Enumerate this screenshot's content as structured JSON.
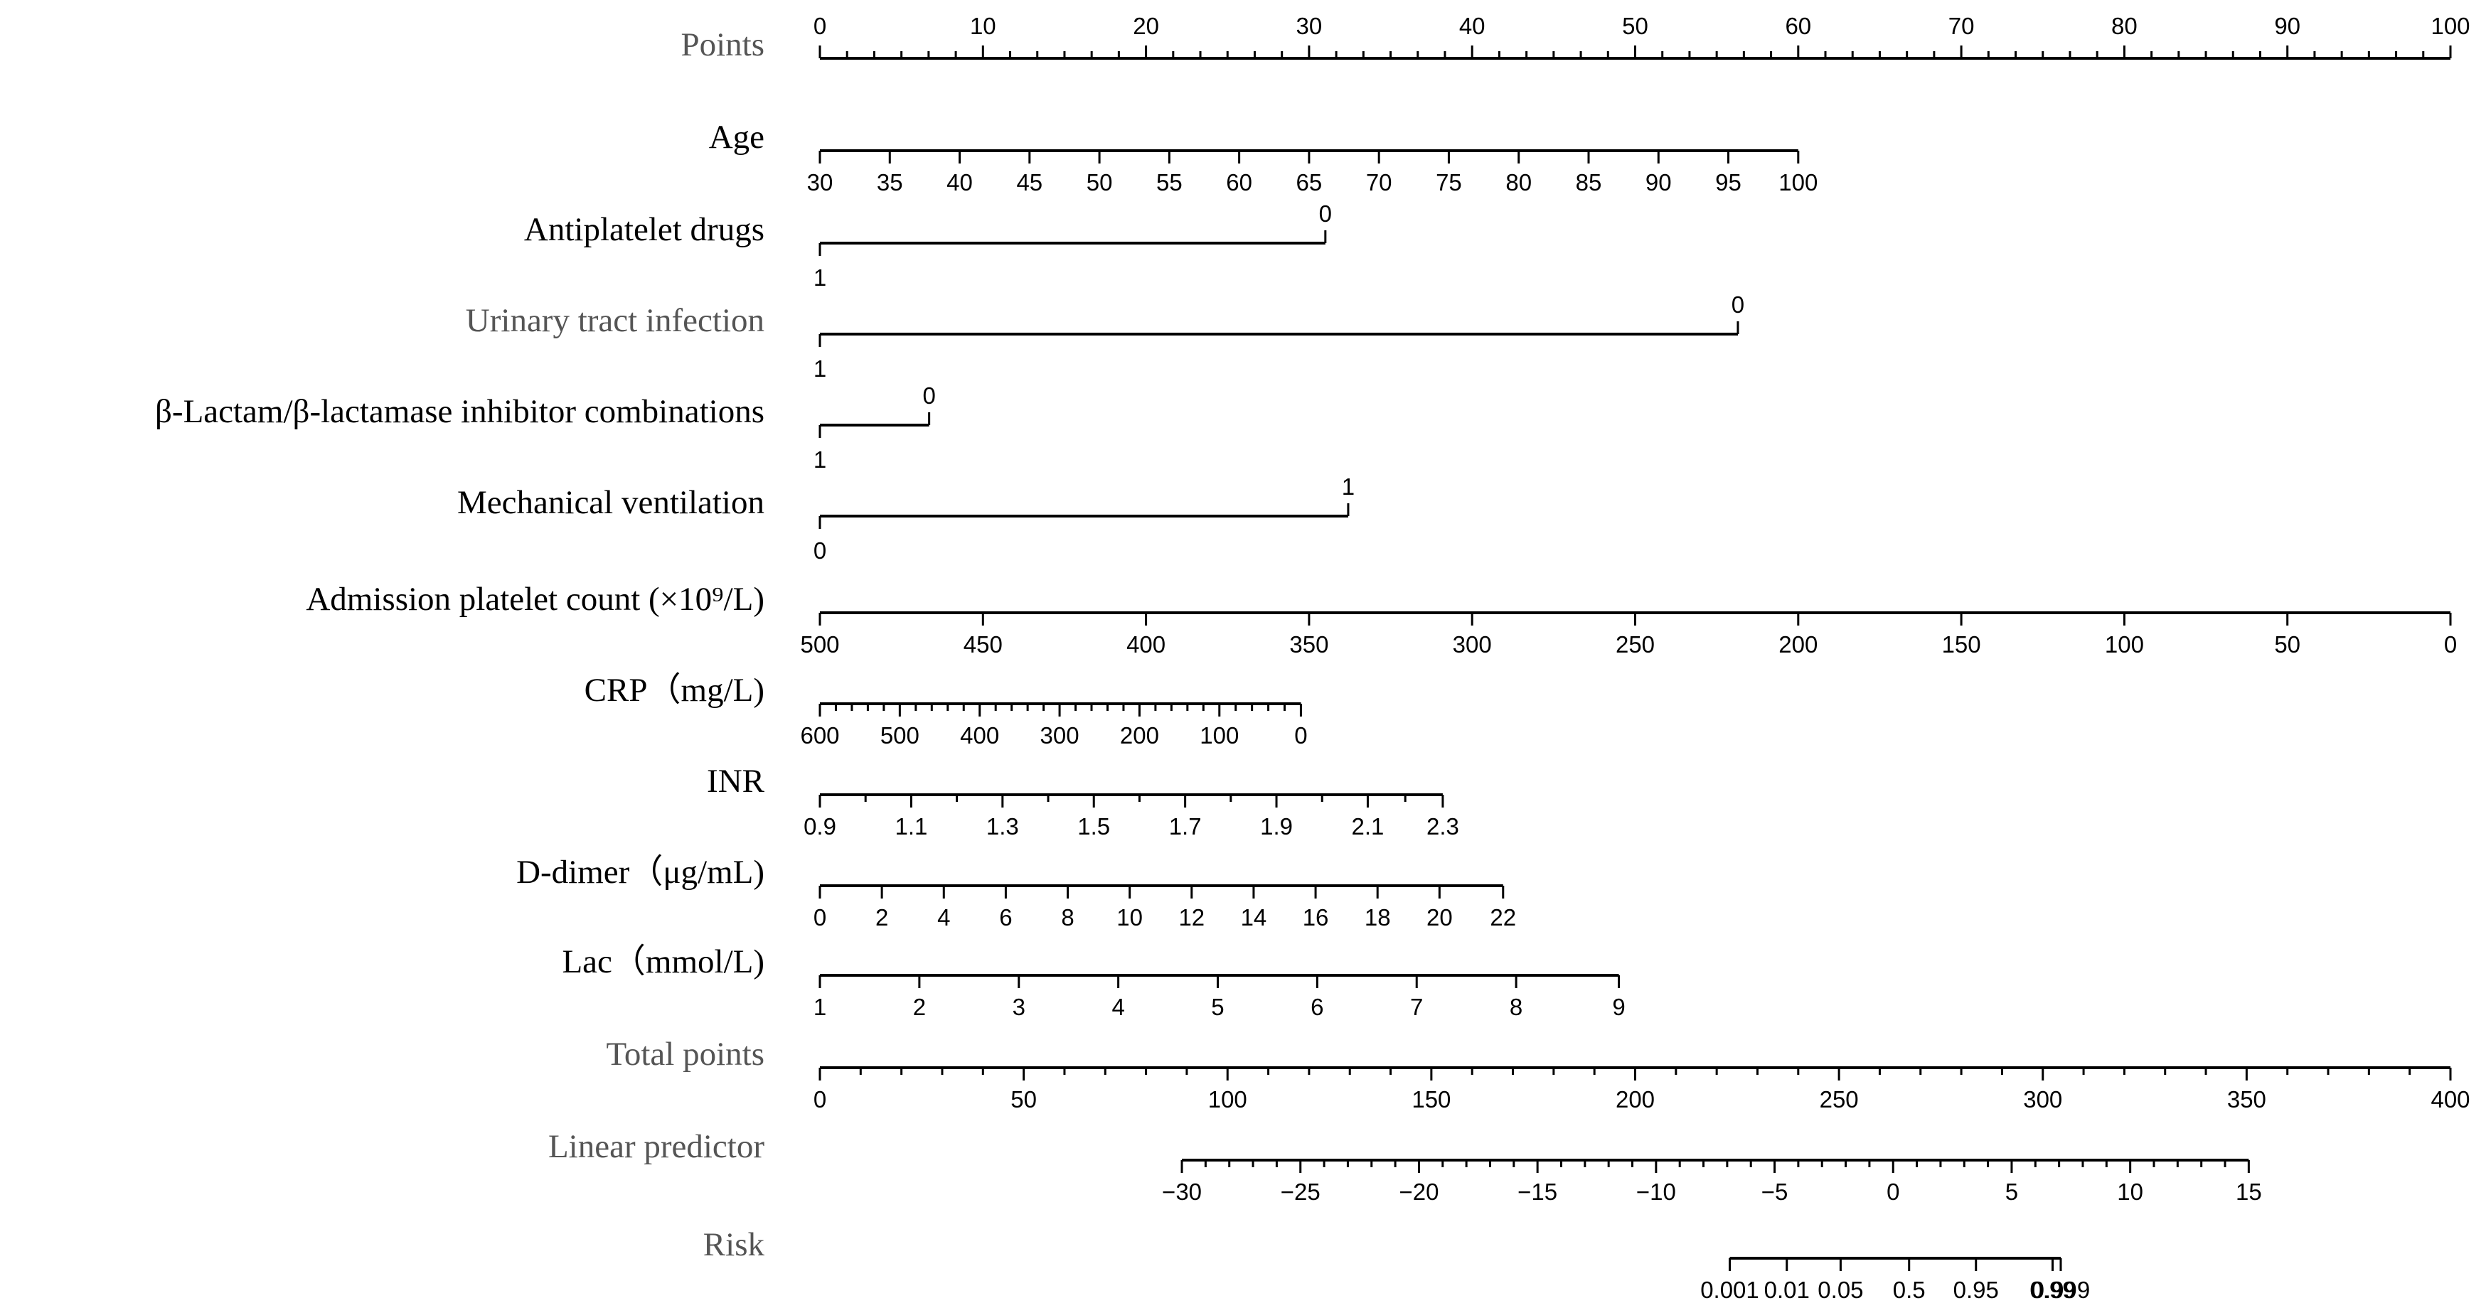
{
  "chart_data": {
    "type": "nomogram",
    "label_colors": {
      "dark": "#000000",
      "gray": "#555555"
    },
    "rows": [
      {
        "name": "Points",
        "label_color": "#555555",
        "ticks": [
          "0",
          "10",
          "20",
          "30",
          "40",
          "50",
          "60",
          "70",
          "80",
          "90",
          "100"
        ],
        "tick_points": [
          0,
          10,
          20,
          30,
          40,
          50,
          60,
          70,
          80,
          90,
          100
        ],
        "minor": 5,
        "label_pos": "above"
      },
      {
        "name": "Age",
        "label_color": "#000000",
        "ticks": [
          "30",
          "35",
          "40",
          "45",
          "50",
          "55",
          "60",
          "65",
          "70",
          "75",
          "80",
          "85",
          "90",
          "95",
          "100"
        ],
        "tick_points": [
          0,
          4.2857,
          8.5714,
          12.857,
          17.143,
          21.429,
          25.714,
          30,
          34.286,
          38.571,
          42.857,
          47.143,
          51.429,
          55.714,
          60
        ],
        "minor": 0,
        "label_pos": "below"
      },
      {
        "name": "Antiplatelet drugs",
        "label_color": "#000000",
        "categorical": true,
        "ticks": [
          "1",
          "0"
        ],
        "tick_points": [
          0,
          31
        ],
        "label_sides": [
          "below",
          "above"
        ]
      },
      {
        "name": "Urinary tract infection",
        "label_color": "#555555",
        "categorical": true,
        "ticks": [
          "1",
          "0"
        ],
        "tick_points": [
          0,
          56.3
        ],
        "label_sides": [
          "below",
          "above"
        ]
      },
      {
        "name": "β-Lactam/β-lactamase inhibitor combinations",
        "label_color": "#000000",
        "categorical": true,
        "ticks": [
          "1",
          "0"
        ],
        "tick_points": [
          0,
          6.7
        ],
        "label_sides": [
          "below",
          "above"
        ]
      },
      {
        "name": "Mechanical ventilation",
        "label_color": "#000000",
        "categorical": true,
        "ticks": [
          "0",
          "1"
        ],
        "tick_points": [
          0,
          32.4
        ],
        "label_sides": [
          "below",
          "above"
        ]
      },
      {
        "name": "Admission platelet count (×10⁹/L)",
        "label_color": "#000000",
        "ticks": [
          "500",
          "450",
          "400",
          "350",
          "300",
          "250",
          "200",
          "150",
          "100",
          "50",
          "0"
        ],
        "tick_points": [
          0,
          10,
          20,
          30,
          40,
          50,
          60,
          70,
          80,
          90,
          100
        ],
        "minor": 0,
        "label_pos": "below"
      },
      {
        "name": "CRP（mg/L)",
        "label_color": "#000000",
        "ticks": [
          "600",
          "500",
          "400",
          "300",
          "200",
          "100",
          "0"
        ],
        "tick_points": [
          0,
          4.9,
          9.8,
          14.7,
          19.6,
          24.5,
          29.5
        ],
        "minor": 4,
        "label_pos": "below"
      },
      {
        "name": "INR",
        "label_color": "#000000",
        "ticks": [
          "0.9",
          "1.1",
          "1.3",
          "1.5",
          "1.7",
          "1.9",
          "2.1",
          "2.3"
        ],
        "tick_points": [
          0,
          5.6,
          11.2,
          16.8,
          22.4,
          28,
          33.6,
          38.2
        ],
        "minor": 1,
        "label_pos": "below"
      },
      {
        "name": "D-dimer（μg/mL)",
        "label_color": "#000000",
        "ticks": [
          "0",
          "2",
          "4",
          "6",
          "8",
          "10",
          "12",
          "14",
          "16",
          "18",
          "20",
          "22"
        ],
        "tick_points": [
          0,
          3.8,
          7.6,
          11.4,
          15.2,
          19,
          22.8,
          26.6,
          30.4,
          34.2,
          38,
          41.9
        ],
        "minor": 0,
        "label_pos": "below"
      },
      {
        "name": "Lac（mmol/L)",
        "label_color": "#000000",
        "ticks": [
          "1",
          "2",
          "3",
          "4",
          "5",
          "6",
          "7",
          "8",
          "9"
        ],
        "tick_points": [
          0,
          6.1,
          12.2,
          18.3,
          24.4,
          30.5,
          36.6,
          42.7,
          49
        ],
        "minor": 0,
        "label_pos": "below"
      },
      {
        "name": "Total points",
        "label_color": "#555555",
        "ticks": [
          "0",
          "50",
          "100",
          "150",
          "200",
          "250",
          "300",
          "350",
          "400"
        ],
        "tick_points": [
          0,
          12.5,
          25,
          37.5,
          50,
          62.5,
          75,
          87.5,
          100
        ],
        "minor": 4,
        "label_pos": "below"
      },
      {
        "name": "Linear predictor",
        "label_color": "#555555",
        "ticks": [
          "−30",
          "−25",
          "−20",
          "−15",
          "−10",
          "−5",
          "0",
          "5",
          "10",
          "15"
        ],
        "tick_points": [
          22.2,
          29.47,
          36.74,
          44.01,
          51.28,
          58.55,
          65.82,
          73.09,
          80.36,
          87.63
        ],
        "minor": 4,
        "label_pos": "below"
      },
      {
        "name": "Risk",
        "label_color": "#555555",
        "ticks": [
          "0.001",
          "0.01",
          "0.05",
          "0.5",
          "0.95",
          "0.99",
          "0.999"
        ],
        "tick_points": [
          55.8,
          59.3,
          62.6,
          66.8,
          70.9,
          75.6,
          76.1
        ],
        "minor": 0,
        "label_pos": "below"
      }
    ]
  }
}
